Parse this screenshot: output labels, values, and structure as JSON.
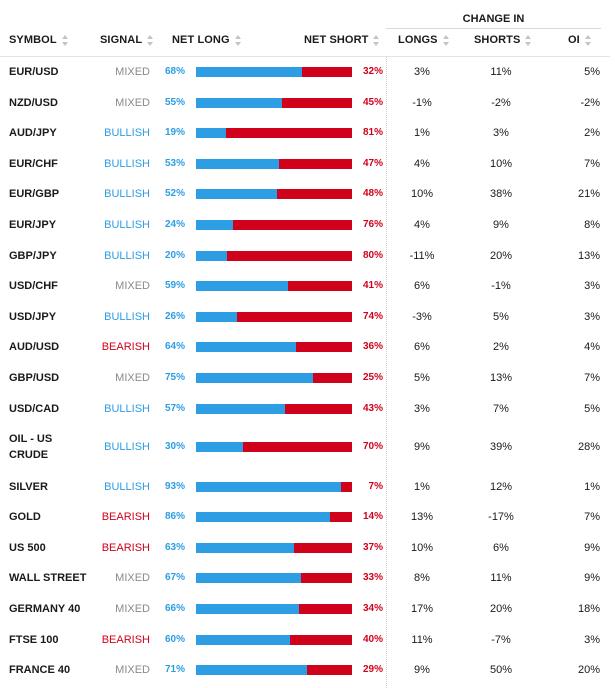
{
  "header": {
    "change_in": "CHANGE IN",
    "symbol": "SYMBOL",
    "signal": "SIGNAL",
    "net_long": "NET LONG",
    "net_short": "NET SHORT",
    "longs": "LONGS",
    "shorts": "SHORTS",
    "oi": "OI"
  },
  "colors": {
    "long": "#2d9de4",
    "short": "#d0021b",
    "mixed": "#8a8a8a"
  },
  "rows": [
    {
      "symbol": "EUR/USD",
      "signal": "MIXED",
      "long": "68%",
      "short": "32%",
      "longs": "3%",
      "shorts": "11%",
      "oi": "5%"
    },
    {
      "symbol": "NZD/USD",
      "signal": "MIXED",
      "long": "55%",
      "short": "45%",
      "longs": "-1%",
      "shorts": "-2%",
      "oi": "-2%"
    },
    {
      "symbol": "AUD/JPY",
      "signal": "BULLISH",
      "long": "19%",
      "short": "81%",
      "longs": "1%",
      "shorts": "3%",
      "oi": "2%"
    },
    {
      "symbol": "EUR/CHF",
      "signal": "BULLISH",
      "long": "53%",
      "short": "47%",
      "longs": "4%",
      "shorts": "10%",
      "oi": "7%"
    },
    {
      "symbol": "EUR/GBP",
      "signal": "BULLISH",
      "long": "52%",
      "short": "48%",
      "longs": "10%",
      "shorts": "38%",
      "oi": "21%"
    },
    {
      "symbol": "EUR/JPY",
      "signal": "BULLISH",
      "long": "24%",
      "short": "76%",
      "longs": "4%",
      "shorts": "9%",
      "oi": "8%"
    },
    {
      "symbol": "GBP/JPY",
      "signal": "BULLISH",
      "long": "20%",
      "short": "80%",
      "longs": "-11%",
      "shorts": "20%",
      "oi": "13%"
    },
    {
      "symbol": "USD/CHF",
      "signal": "MIXED",
      "long": "59%",
      "short": "41%",
      "longs": "6%",
      "shorts": "-1%",
      "oi": "3%"
    },
    {
      "symbol": "USD/JPY",
      "signal": "BULLISH",
      "long": "26%",
      "short": "74%",
      "longs": "-3%",
      "shorts": "5%",
      "oi": "3%"
    },
    {
      "symbol": "AUD/USD",
      "signal": "BEARISH",
      "long": "64%",
      "short": "36%",
      "longs": "6%",
      "shorts": "2%",
      "oi": "4%"
    },
    {
      "symbol": "GBP/USD",
      "signal": "MIXED",
      "long": "75%",
      "short": "25%",
      "longs": "5%",
      "shorts": "13%",
      "oi": "7%"
    },
    {
      "symbol": "USD/CAD",
      "signal": "BULLISH",
      "long": "57%",
      "short": "43%",
      "longs": "3%",
      "shorts": "7%",
      "oi": "5%"
    },
    {
      "symbol_line1": "OIL - US",
      "symbol_line2": "CRUDE",
      "signal": "BULLISH",
      "long": "30%",
      "short": "70%",
      "longs": "9%",
      "shorts": "39%",
      "oi": "28%"
    },
    {
      "symbol": "SILVER",
      "signal": "BULLISH",
      "long": "93%",
      "short": "7%",
      "longs": "1%",
      "shorts": "12%",
      "oi": "1%"
    },
    {
      "symbol": "GOLD",
      "signal": "BEARISH",
      "long": "86%",
      "short": "14%",
      "longs": "13%",
      "shorts": "-17%",
      "oi": "7%"
    },
    {
      "symbol": "US 500",
      "signal": "BEARISH",
      "long": "63%",
      "short": "37%",
      "longs": "10%",
      "shorts": "6%",
      "oi": "9%"
    },
    {
      "symbol": "WALL STREET",
      "signal": "MIXED",
      "long": "67%",
      "short": "33%",
      "longs": "8%",
      "shorts": "11%",
      "oi": "9%"
    },
    {
      "symbol": "GERMANY 40",
      "signal": "MIXED",
      "long": "66%",
      "short": "34%",
      "longs": "17%",
      "shorts": "20%",
      "oi": "18%"
    },
    {
      "symbol": "FTSE 100",
      "signal": "BEARISH",
      "long": "60%",
      "short": "40%",
      "longs": "11%",
      "shorts": "-7%",
      "oi": "3%"
    },
    {
      "symbol": "FRANCE 40",
      "signal": "MIXED",
      "long": "71%",
      "short": "29%",
      "longs": "9%",
      "shorts": "50%",
      "oi": "20%"
    }
  ]
}
